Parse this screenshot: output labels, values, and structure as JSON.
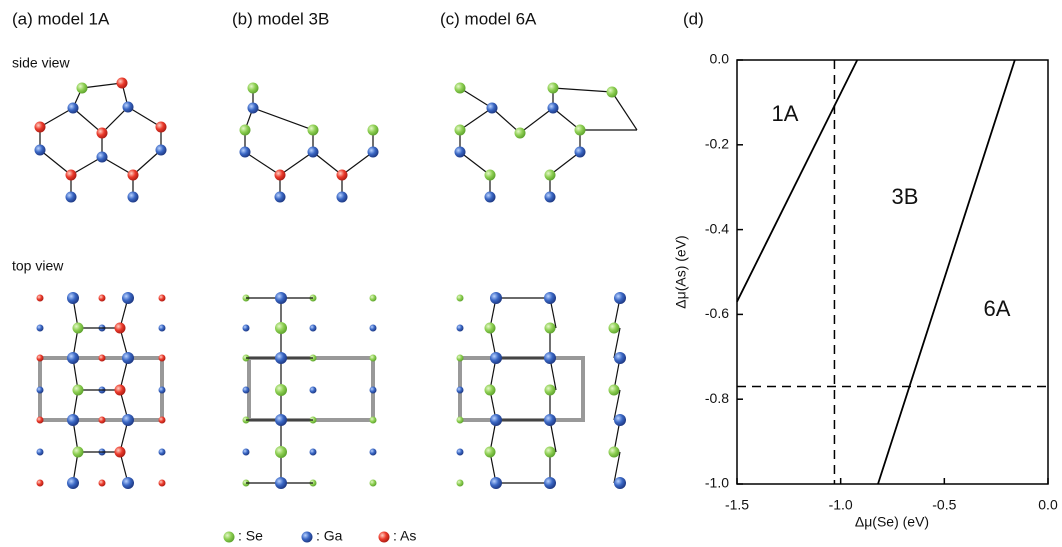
{
  "panels": [
    {
      "label": "(a) model 1A"
    },
    {
      "label": "(b) model 3B"
    },
    {
      "label": "(c) model 6A"
    }
  ],
  "side_view": "side view",
  "top_view": "top view",
  "legend": [
    ": Se",
    ": Ga",
    ": As"
  ],
  "chart_data": {
    "type": "line",
    "label": "(d)",
    "xlabel": "Δμ(Se) (eV)",
    "ylabel": "Δμ(As) (eV)",
    "series": [
      {
        "color": "#000000",
        "x": [
          -1.5,
          -0.92
        ],
        "values": [
          -0.57,
          0
        ]
      },
      {
        "color": "#000000",
        "x": [
          -0.82,
          -0.16
        ],
        "values": [
          -1,
          0
        ]
      }
    ],
    "reference_lines": {
      "x": [
        -1.03
      ],
      "y": [
        -0.77
      ],
      "style": "dashed"
    },
    "region_labels": [
      "1A",
      "3B",
      "6A"
    ],
    "xlim": [
      -1.5,
      0
    ],
    "ylim": [
      -1,
      0
    ],
    "xticks": [
      {
        "value": -1.5,
        "label": "-1.5"
      },
      {
        "value": -1,
        "label": "-1.0"
      },
      {
        "value": -0.5,
        "label": "-0.5"
      },
      {
        "value": 0,
        "label": "0.0"
      }
    ],
    "yticks": [
      {
        "value": 0,
        "label": "0.0"
      },
      -0.2,
      -0.4,
      -0.6,
      -0.8,
      {
        "value": -1,
        "label": "-1.0"
      }
    ]
  }
}
